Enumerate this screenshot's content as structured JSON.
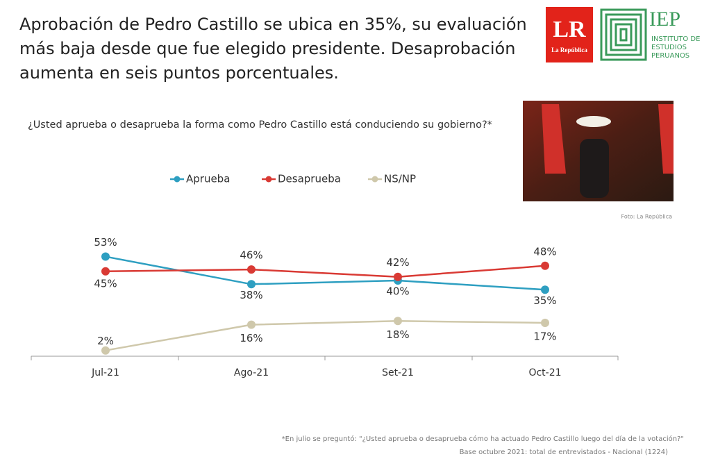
{
  "header": {
    "title": "Aprobación de Pedro Castillo se ubica en 35%, su evaluación más baja desde que fue elegido presidente. Desaprobación aumenta en seis puntos porcentuales."
  },
  "logos": {
    "lr": "LR",
    "lr_name": "La República",
    "iep": "IEP",
    "iep_name": [
      "INSTITUTO DE",
      "ESTUDIOS",
      "PERUANOS"
    ]
  },
  "photo_credit": "Foto: La República",
  "chart_data": {
    "type": "line",
    "subtitle": "¿Usted aprueba o desaprueba la forma como Pedro Castillo está conduciendo su gobierno?*",
    "categories": [
      "Jul-21",
      "Ago-21",
      "Set-21",
      "Oct-21"
    ],
    "series": [
      {
        "name": "Aprueba",
        "color": "#2e9fc1",
        "values": [
          53,
          38,
          40,
          35
        ],
        "value_labels": [
          "53%",
          "38%",
          "40%",
          "35%"
        ]
      },
      {
        "name": "Desaprueba",
        "color": "#d93a34",
        "values": [
          45,
          46,
          42,
          48
        ],
        "value_labels": [
          "45%",
          "46%",
          "42%",
          "48%"
        ]
      },
      {
        "name": "NS/NP",
        "color": "#cfc8ab",
        "values": [
          2,
          16,
          18,
          17
        ],
        "value_labels": [
          "2%",
          "16%",
          "18%",
          "17%"
        ]
      }
    ]
  },
  "notes": [
    "*En julio se preguntó: \"¿Usted aprueba o desaprueba cómo ha actuado Pedro Castillo luego del día de la votación?\"",
    "Base octubre 2021: total de entrevistados - Nacional (1224)"
  ]
}
